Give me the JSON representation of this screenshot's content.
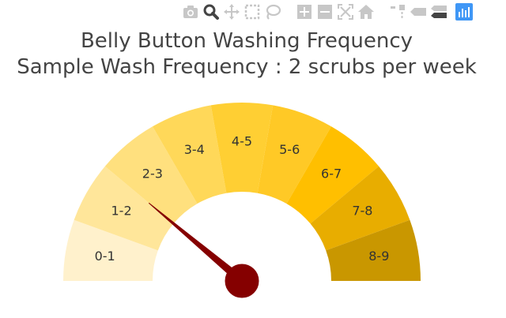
{
  "toolbar": {
    "icons": [
      "camera-icon",
      "zoom-icon",
      "pan-icon",
      "box-select-icon",
      "lasso-select-icon",
      "zoom-in-icon",
      "zoom-out-icon",
      "autoscale-icon",
      "reset-axes-icon",
      "spike-lines-icon",
      "hover-closest-icon",
      "hover-compare-icon",
      "plotly-logo-icon"
    ],
    "active": "zoom-icon",
    "colors": {
      "inactive": "#c7c7c7",
      "active": "#444444",
      "logo": "#3f97f6"
    }
  },
  "chart_data": {
    "type": "gauge",
    "title_line1": "Belly Button Washing Frequency",
    "title_line2": "Sample Wash Frequency : 2 scrubs per week",
    "range": [
      0,
      9
    ],
    "value": 2,
    "segments": [
      {
        "label": "0-1",
        "from": 0,
        "to": 1,
        "color": "#fff1cc"
      },
      {
        "label": "1-2",
        "from": 1,
        "to": 2,
        "color": "#ffe69a"
      },
      {
        "label": "2-3",
        "from": 2,
        "to": 3,
        "color": "#ffe07e"
      },
      {
        "label": "3-4",
        "from": 3,
        "to": 4,
        "color": "#ffd859"
      },
      {
        "label": "4-5",
        "from": 4,
        "to": 5,
        "color": "#ffcf33"
      },
      {
        "label": "5-6",
        "from": 5,
        "to": 6,
        "color": "#ffc926"
      },
      {
        "label": "6-7",
        "from": 6,
        "to": 7,
        "color": "#ffbf00"
      },
      {
        "label": "7-8",
        "from": 7,
        "to": 8,
        "color": "#e8ad00"
      },
      {
        "label": "8-9",
        "from": 8,
        "to": 9,
        "color": "#c99700"
      }
    ],
    "needle_color": "#850000"
  }
}
